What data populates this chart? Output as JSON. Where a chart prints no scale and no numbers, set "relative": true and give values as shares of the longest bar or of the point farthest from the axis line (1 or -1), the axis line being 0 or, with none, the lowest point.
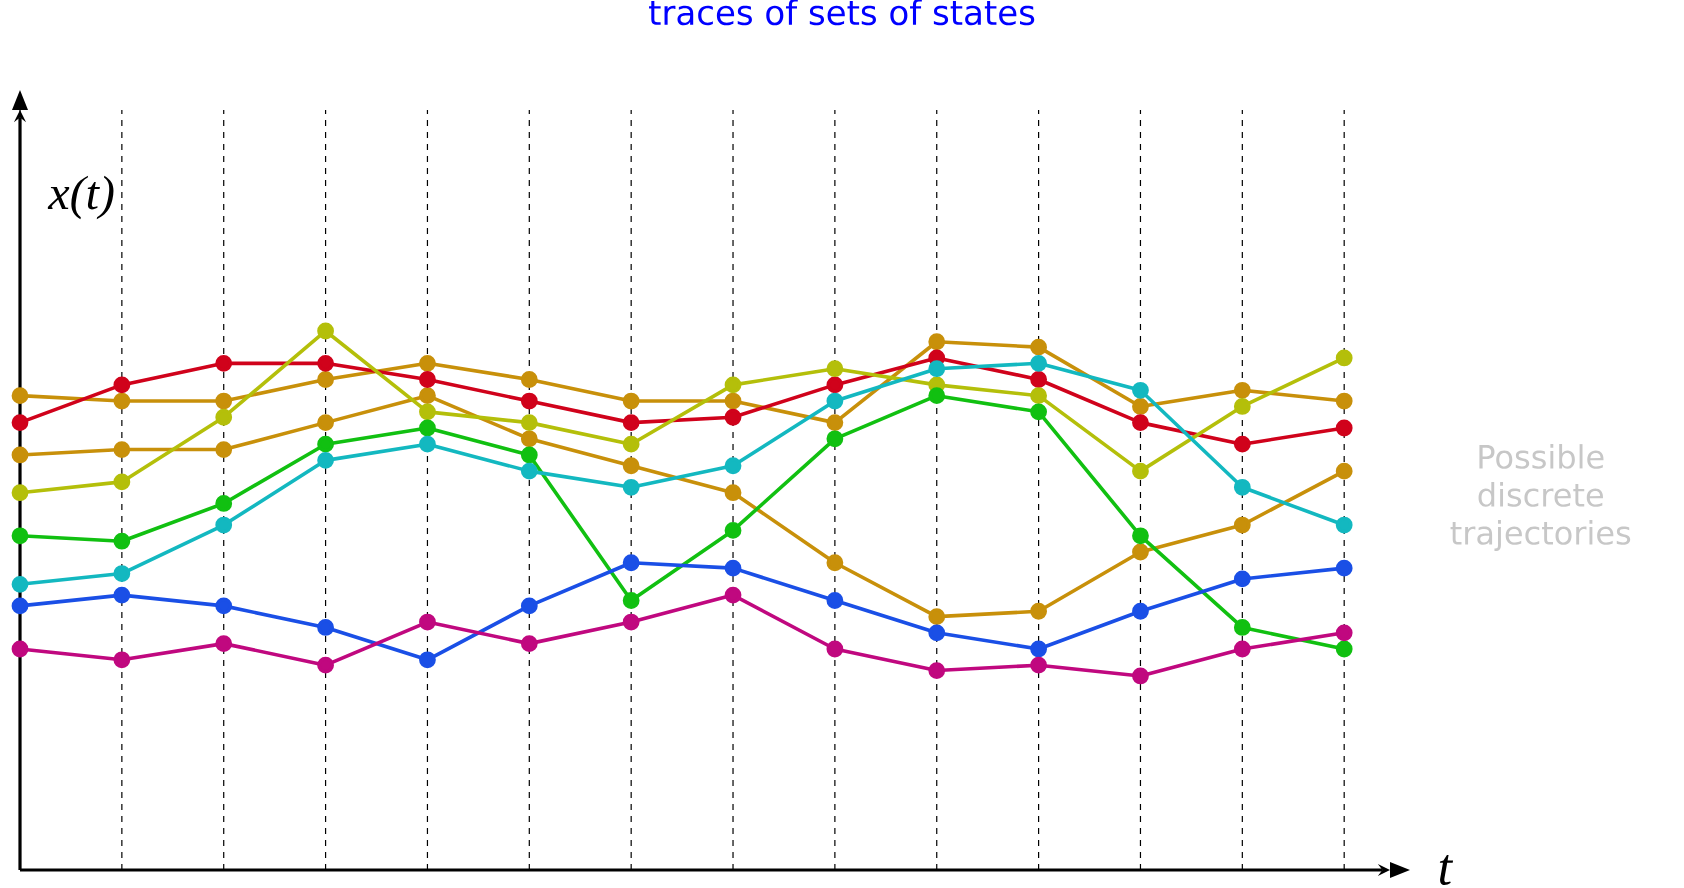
{
  "chart_data": {
    "type": "line",
    "title": "traces of sets of states",
    "xlabel": "t",
    "ylabel": "x(t)",
    "relative": true,
    "grid": "x",
    "marker": "circle",
    "line_style": "solid",
    "categories": [
      null,
      null,
      null,
      null,
      null,
      null,
      null,
      null,
      null,
      null,
      null,
      null,
      null,
      null
    ],
    "annotations": [
      "Possible discrete trajectories"
    ],
    "series": [
      {
        "color": "#c8900a",
        "values": [
          0.88,
          0.87,
          0.87,
          0.91,
          0.94,
          0.91,
          0.87,
          0.87,
          0.83,
          0.98,
          0.97,
          0.86,
          0.89,
          0.87
        ]
      },
      {
        "color": "#c8900a",
        "values": [
          0.77,
          0.78,
          0.78,
          0.83,
          0.88,
          0.8,
          0.75,
          0.7,
          0.57,
          0.47,
          0.48,
          0.59,
          0.64,
          0.74
        ]
      },
      {
        "color": "#d0021b",
        "values": [
          0.83,
          0.9,
          0.94,
          0.94,
          0.91,
          0.87,
          0.83,
          0.84,
          0.9,
          0.95,
          0.91,
          0.83,
          0.79,
          0.82
        ]
      },
      {
        "color": "#b4bf0a",
        "values": [
          0.7,
          0.72,
          0.84,
          1.0,
          0.85,
          0.83,
          0.79,
          0.9,
          0.93,
          0.9,
          0.88,
          0.74,
          0.86,
          0.95
        ]
      },
      {
        "color": "#11c011",
        "values": [
          0.62,
          0.61,
          0.68,
          0.79,
          0.82,
          0.77,
          0.5,
          0.63,
          0.8,
          0.88,
          0.85,
          0.62,
          0.45,
          0.41
        ]
      },
      {
        "color": "#13b8c0",
        "values": [
          0.53,
          0.55,
          0.64,
          0.76,
          0.79,
          0.74,
          0.71,
          0.75,
          0.87,
          0.93,
          0.94,
          0.89,
          0.71,
          0.64
        ]
      },
      {
        "color": "#1a4fe6",
        "values": [
          0.49,
          0.51,
          0.49,
          0.45,
          0.39,
          0.49,
          0.57,
          0.56,
          0.5,
          0.44,
          0.41,
          0.48,
          0.54,
          0.56
        ]
      },
      {
        "color": "#c0087f",
        "values": [
          0.41,
          0.39,
          0.42,
          0.38,
          0.46,
          0.42,
          0.46,
          0.51,
          0.41,
          0.37,
          0.38,
          0.36,
          0.41,
          0.44
        ]
      }
    ]
  }
}
